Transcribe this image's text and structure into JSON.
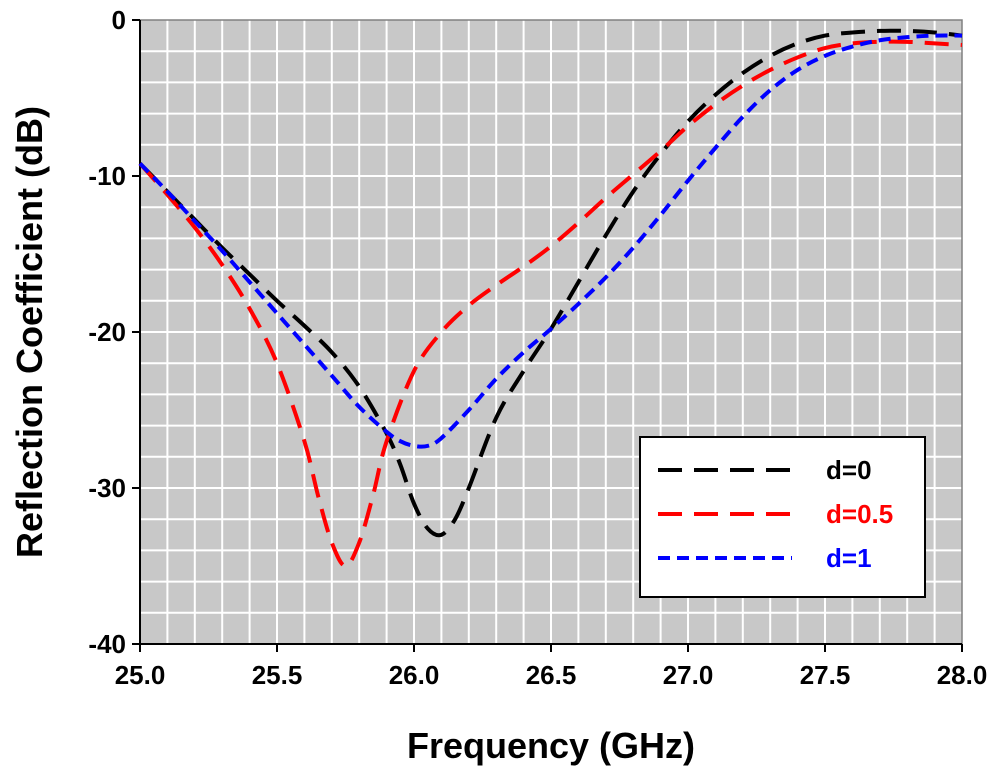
{
  "chart_data": {
    "type": "line",
    "title": "",
    "xlabel": "Frequency (GHz)",
    "ylabel": "Reflection Coefficient (dB)",
    "xlim": [
      25.0,
      28.0
    ],
    "ylim": [
      -40,
      0
    ],
    "x_ticks": [
      "25.0",
      "25.5",
      "26.0",
      "26.5",
      "27.0",
      "27.5",
      "28.0"
    ],
    "y_ticks": [
      "0",
      "-10",
      "-20",
      "-30",
      "-40"
    ],
    "grid": true,
    "legend_position": "bottom-right",
    "series": [
      {
        "name": "d=0",
        "color": "#000000",
        "dash": "long-dash",
        "x": [
          25.0,
          25.1,
          25.2,
          25.3,
          25.4,
          25.5,
          25.6,
          25.7,
          25.8,
          25.9,
          25.95,
          26.0,
          26.05,
          26.1,
          26.15,
          26.2,
          26.3,
          26.4,
          26.5,
          26.6,
          26.7,
          26.8,
          26.9,
          27.0,
          27.1,
          27.2,
          27.3,
          27.4,
          27.5,
          27.6,
          27.7,
          27.8,
          27.9,
          28.0
        ],
        "y": [
          -9.2,
          -11.0,
          -12.8,
          -14.6,
          -16.3,
          -18.0,
          -19.6,
          -21.3,
          -23.5,
          -26.5,
          -28.5,
          -31.0,
          -32.6,
          -33.0,
          -32.0,
          -30.0,
          -25.5,
          -22.5,
          -19.8,
          -16.8,
          -13.8,
          -11.0,
          -8.6,
          -6.5,
          -4.8,
          -3.4,
          -2.3,
          -1.5,
          -1.0,
          -0.8,
          -0.7,
          -0.7,
          -0.8,
          -1.0
        ]
      },
      {
        "name": "d=0.5",
        "color": "#ff0000",
        "dash": "long-dash",
        "x": [
          25.0,
          25.1,
          25.2,
          25.3,
          25.4,
          25.5,
          25.6,
          25.65,
          25.7,
          25.75,
          25.8,
          25.85,
          25.9,
          26.0,
          26.1,
          26.2,
          26.3,
          26.4,
          26.5,
          26.6,
          26.7,
          26.8,
          26.9,
          27.0,
          27.1,
          27.2,
          27.3,
          27.4,
          27.5,
          27.6,
          27.7,
          27.8,
          27.9,
          28.0
        ],
        "y": [
          -9.2,
          -11.2,
          -13.3,
          -15.7,
          -18.5,
          -22.0,
          -27.0,
          -30.5,
          -33.5,
          -35.0,
          -33.5,
          -30.5,
          -27.0,
          -22.5,
          -20.0,
          -18.3,
          -17.0,
          -15.8,
          -14.5,
          -13.0,
          -11.4,
          -9.9,
          -8.4,
          -6.8,
          -5.4,
          -4.2,
          -3.2,
          -2.4,
          -1.8,
          -1.5,
          -1.4,
          -1.4,
          -1.5,
          -1.6
        ]
      },
      {
        "name": "d=1",
        "color": "#0000ff",
        "dash": "short-dash",
        "x": [
          25.0,
          25.1,
          25.2,
          25.3,
          25.4,
          25.5,
          25.6,
          25.7,
          25.8,
          25.9,
          25.95,
          26.0,
          26.05,
          26.1,
          26.2,
          26.3,
          26.4,
          26.5,
          26.6,
          26.7,
          26.8,
          26.9,
          27.0,
          27.1,
          27.2,
          27.3,
          27.4,
          27.5,
          27.6,
          27.7,
          27.8,
          27.9,
          28.0
        ],
        "y": [
          -9.2,
          -11.0,
          -12.9,
          -14.8,
          -16.8,
          -18.8,
          -20.8,
          -22.8,
          -24.8,
          -26.4,
          -27.0,
          -27.3,
          -27.3,
          -26.8,
          -25.0,
          -23.0,
          -21.3,
          -19.8,
          -18.2,
          -16.5,
          -14.6,
          -12.5,
          -10.3,
          -8.2,
          -6.2,
          -4.5,
          -3.2,
          -2.3,
          -1.7,
          -1.3,
          -1.1,
          -1.0,
          -1.0
        ]
      }
    ]
  }
}
